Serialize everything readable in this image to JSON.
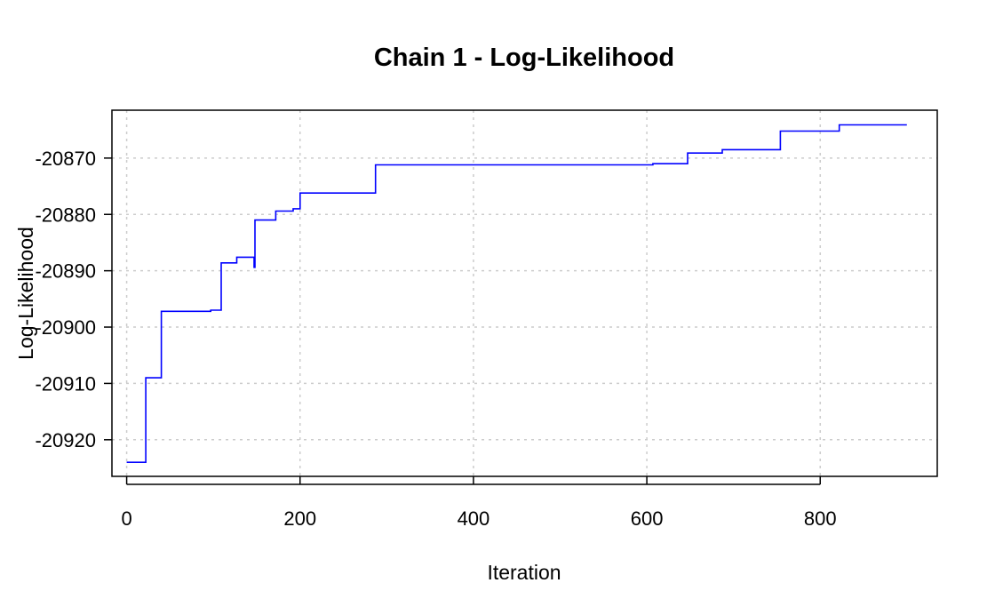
{
  "chart_data": {
    "type": "line",
    "step": true,
    "title": "Chain 1 - Log-Likelihood",
    "xlabel": "Iteration",
    "ylabel": "Log-Likelihood",
    "xlim": [
      -17,
      935
    ],
    "ylim": [
      -20926.5,
      -20861.5
    ],
    "xticks": [
      0,
      200,
      400,
      600,
      800
    ],
    "yticks": [
      -20870,
      -20880,
      -20890,
      -20900,
      -20910,
      -20920
    ],
    "grid": true,
    "line_color": "#0000ff",
    "grid_color": "#cccccc",
    "series": [
      {
        "x": [
          0,
          20,
          22,
          38,
          40,
          95,
          97,
          107,
          109,
          125,
          127,
          146,
          147,
          148,
          170,
          172,
          190,
          192,
          198,
          200,
          285,
          287,
          605,
          607,
          645,
          647,
          685,
          687,
          752,
          754,
          820,
          822,
          900
        ],
        "y": [
          -20924,
          -20924,
          -20909,
          -20909,
          -20897.2,
          -20897.2,
          -20897,
          -20897,
          -20888.6,
          -20888.6,
          -20887.6,
          -20887.6,
          -20889.4,
          -20881,
          -20881,
          -20879.4,
          -20879.4,
          -20879,
          -20879,
          -20876.2,
          -20876.2,
          -20871.2,
          -20871.2,
          -20871,
          -20871,
          -20869.1,
          -20869.1,
          -20868.5,
          -20868.5,
          -20865.2,
          -20865.2,
          -20864.1,
          -20864.1
        ]
      }
    ]
  }
}
